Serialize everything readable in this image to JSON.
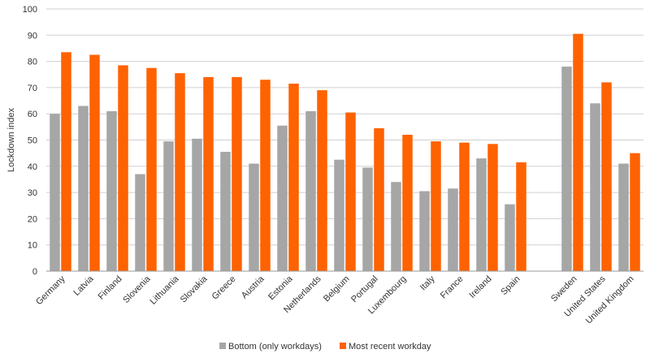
{
  "chart_data": {
    "type": "bar",
    "ylabel": "Lockdown index",
    "xlabel": "",
    "ylim": [
      0,
      100
    ],
    "yticks": [
      0,
      10,
      20,
      30,
      40,
      50,
      60,
      70,
      80,
      90,
      100
    ],
    "grid": true,
    "legend_position": "bottom",
    "categories": [
      "Germany",
      "Latvia",
      "Finland",
      "Slovenia",
      "Lithuania",
      "Slovakia",
      "Greece",
      "Austria",
      "Estonia",
      "Netherlands",
      "Belgium",
      "Portugal",
      "Luxembourg",
      "Italy",
      "France",
      "Ireland",
      "Spain",
      "",
      "Sweden",
      "United States",
      "United Kingdom"
    ],
    "series": [
      {
        "name": "Bottom (only workdays)",
        "color": "#a6a6a6",
        "values": [
          60,
          63,
          61,
          37,
          49.5,
          50.5,
          45.5,
          41,
          55.5,
          61,
          42.5,
          39.5,
          34,
          30.5,
          31.5,
          43,
          25.5,
          null,
          78,
          64,
          41
        ]
      },
      {
        "name": "Most recent workday",
        "color": "#ff6200",
        "values": [
          83.5,
          82.5,
          78.5,
          77.5,
          75.5,
          74,
          74,
          73,
          71.5,
          69,
          60.5,
          54.5,
          52,
          49.5,
          49,
          48.5,
          41.5,
          null,
          90.5,
          72,
          45
        ]
      }
    ]
  }
}
